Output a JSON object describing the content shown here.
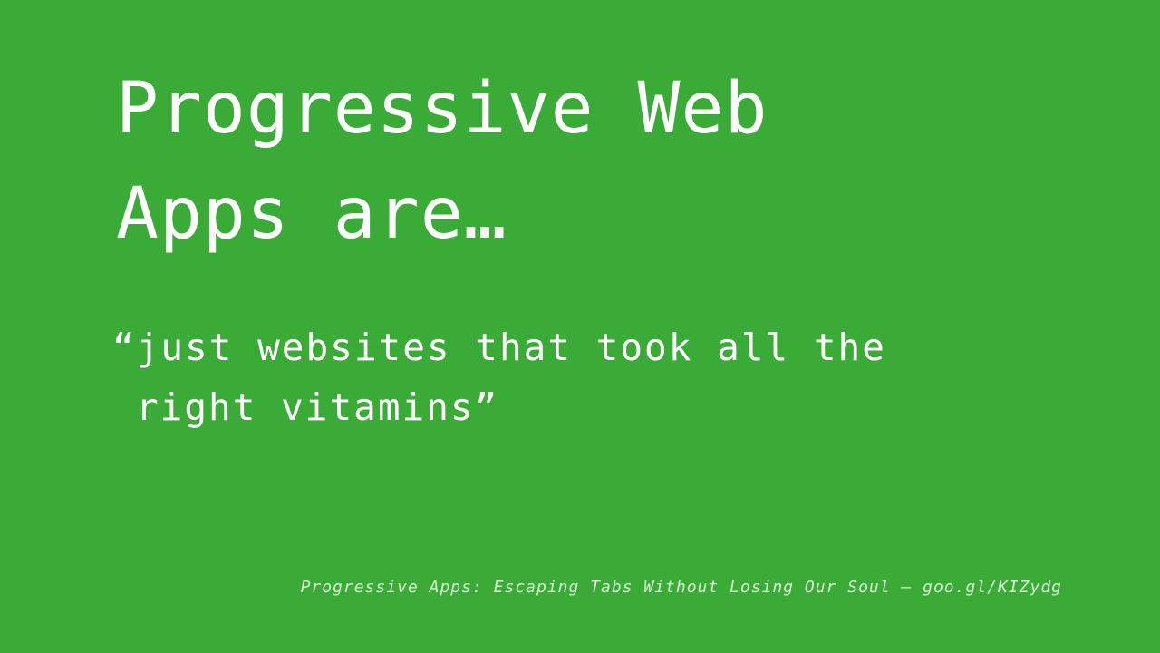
{
  "slide": {
    "title_line1": "Progressive Web",
    "title_line2": "Apps are…",
    "quote_line1": "“just websites that took all the",
    "quote_line2": "right vitamins”",
    "citation": "Progressive Apps: Escaping Tabs Without Losing Our Soul — goo.gl/KIZydg"
  },
  "colors": {
    "background": "#3bab37",
    "text": "#ffffff",
    "citation_text": "#d9f0d6"
  }
}
